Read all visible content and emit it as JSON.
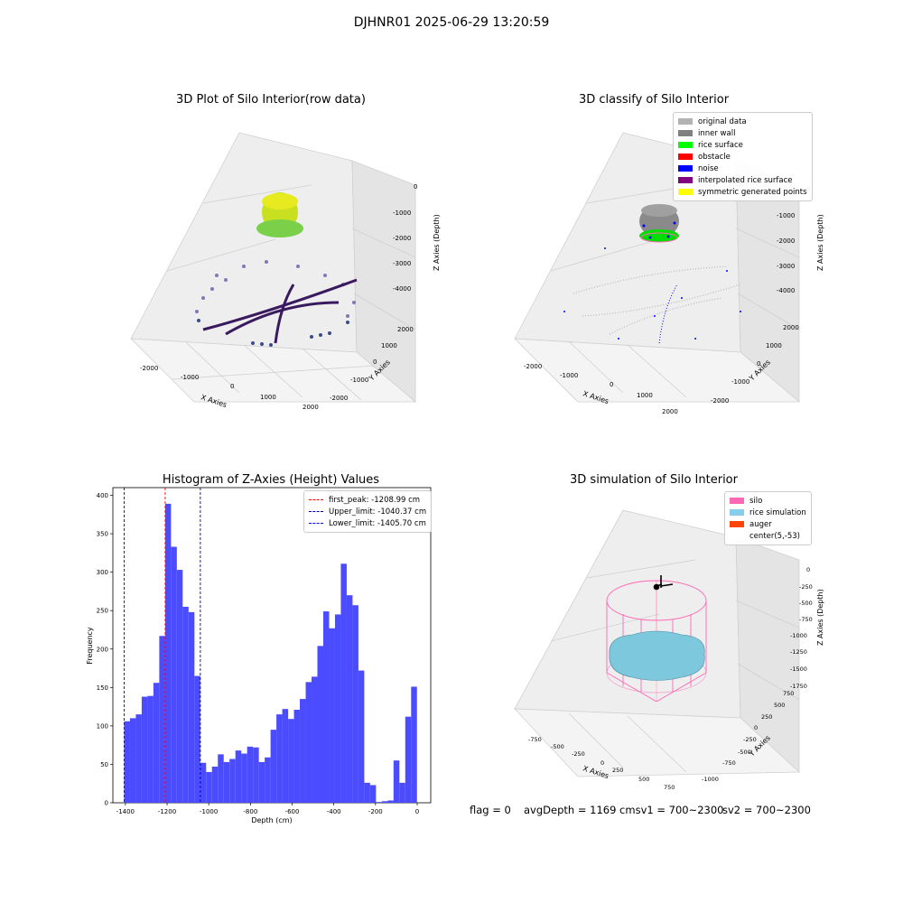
{
  "suptitle": "DJHNR01 2025-06-29 13:20:59",
  "panels": {
    "raw": {
      "title": "3D Plot of Silo Interior(row data)",
      "xlabel": "X Axies",
      "ylabel": "Y Axies",
      "zlabel": "Z Axies (Depth)",
      "xticks": [
        "-2000",
        "-1000",
        "0",
        "1000",
        "2000"
      ],
      "yticks": [
        "-2000",
        "-1000",
        "0",
        "1000",
        "2000"
      ],
      "zticks": [
        "0",
        "-1000",
        "-2000",
        "-3000",
        "-4000"
      ]
    },
    "classify": {
      "title": "3D classify of Silo Interior",
      "xlabel": "X Axies",
      "ylabel": "Y Axies",
      "zlabel": "Z Axies (Depth)",
      "xticks": [
        "-2000",
        "-1000",
        "0",
        "1000",
        "2000"
      ],
      "yticks": [
        "-2000",
        "-1000",
        "0",
        "1000",
        "2000"
      ],
      "zticks": [
        "0",
        "-1000",
        "-2000",
        "-3000",
        "-4000"
      ],
      "legend": [
        {
          "label": "original data",
          "color": "#b3b3b3"
        },
        {
          "label": "inner wall",
          "color": "#808080"
        },
        {
          "label": "rice surface",
          "color": "#00ff00"
        },
        {
          "label": "obstacle",
          "color": "#ff0000"
        },
        {
          "label": "noise",
          "color": "#0000ff"
        },
        {
          "label": "interpolated rice surface",
          "color": "#800080"
        },
        {
          "label": "symmetric generated points",
          "color": "#ffff00"
        }
      ]
    },
    "simulation": {
      "title": "3D simulation of Silo Interior",
      "xlabel": "X Axies",
      "ylabel": "Y Axies",
      "zlabel": "Z Axies (Depth)",
      "xticks": [
        "-750",
        "-500",
        "-250",
        "0",
        "250",
        "500",
        "750"
      ],
      "yticks": [
        "-1000",
        "-750",
        "-500",
        "-250",
        "0",
        "250",
        "500",
        "750"
      ],
      "zticks": [
        "0",
        "-250",
        "-500",
        "-750",
        "-1000",
        "-1250",
        "-1500",
        "-1750"
      ],
      "legend": [
        {
          "label": "silo",
          "color": "#ff69b4"
        },
        {
          "label": "rice simulation",
          "color": "#87ceeb"
        },
        {
          "label": "auger",
          "color": "#ff4500"
        },
        {
          "label": "center(5,-53)",
          "color": "#ffffff"
        }
      ]
    }
  },
  "status": {
    "flag": "flag = 0",
    "avg": "avgDepth = 1169 cmsv1 = 700~2300",
    "sv2": "sv2 = 700~2300"
  },
  "chart_data": {
    "type": "bar",
    "title": "Histogram of Z-Axies (Height) Values",
    "xlabel": "Depth (cm)",
    "ylabel": "Frequency",
    "xlim": [
      -1460,
      65
    ],
    "ylim": [
      0,
      410
    ],
    "xticks": [
      -1400,
      -1200,
      -1000,
      -800,
      -600,
      -400,
      -200,
      0
    ],
    "yticks": [
      0,
      50,
      100,
      150,
      200,
      250,
      300,
      350,
      400
    ],
    "bin_start": -1406,
    "bin_width": 28.1,
    "values": [
      106,
      110,
      115,
      138,
      139,
      156,
      217,
      389,
      333,
      303,
      255,
      248,
      165,
      52,
      40,
      47,
      63,
      53,
      57,
      68,
      64,
      73,
      72,
      53,
      59,
      95,
      115,
      122,
      109,
      121,
      135,
      157,
      164,
      204,
      249,
      227,
      245,
      311,
      270,
      257,
      172,
      26,
      23,
      1,
      2,
      3,
      55,
      26,
      112,
      151
    ],
    "bar_color": "#4b4bff",
    "lines": [
      {
        "label": "first_peak: -1208.99 cm",
        "value": -1208.99,
        "color": "#ff0000"
      },
      {
        "label": "Upper_limit: -1040.37 cm",
        "value": -1040.37,
        "color": "#0000aa"
      },
      {
        "label": "Lower_limit: -1405.70 cm",
        "value": -1405.7,
        "color": "#0000ff"
      }
    ],
    "legend_position": "upper right"
  }
}
